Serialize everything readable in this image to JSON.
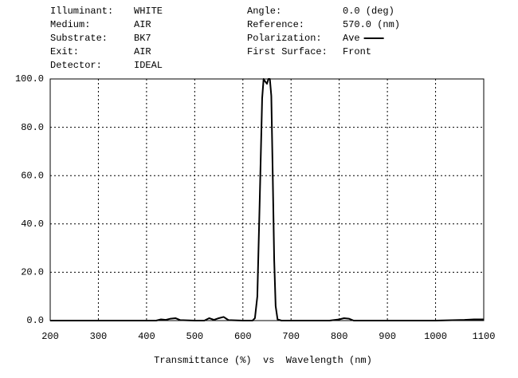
{
  "header": {
    "left": [
      {
        "label": "Illuminant:",
        "value": "WHITE"
      },
      {
        "label": "Medium:",
        "value": "AIR"
      },
      {
        "label": "Substrate:",
        "value": "BK7"
      },
      {
        "label": "Exit:",
        "value": "AIR"
      },
      {
        "label": "Detector:",
        "value": "IDEAL"
      }
    ],
    "right": [
      {
        "label": "Angle:",
        "value": "0.0 (deg)"
      },
      {
        "label": "Reference:",
        "value": "570.0 (nm)"
      },
      {
        "label": "Polarization:",
        "value": "Ave"
      },
      {
        "label": "First Surface:",
        "value": "Front"
      }
    ]
  },
  "chart_data": {
    "type": "line",
    "xlabel": "Transmittance (%)  vs  Wavelength (nm)",
    "x": [
      200,
      300,
      400,
      420,
      430,
      440,
      450,
      460,
      470,
      500,
      520,
      530,
      540,
      550,
      560,
      570,
      600,
      620,
      625,
      630,
      635,
      640,
      643,
      646,
      650,
      653,
      656,
      659,
      662,
      665,
      668,
      672,
      680,
      700,
      780,
      800,
      810,
      820,
      830,
      900,
      1000,
      1060,
      1080,
      1100
    ],
    "values": [
      0,
      0,
      0,
      0,
      0.5,
      0.3,
      0.8,
      1,
      0.2,
      0,
      0,
      1,
      0.3,
      1,
      1.5,
      0.2,
      0,
      0,
      1,
      10,
      50,
      92,
      100,
      99,
      98,
      100,
      100,
      93,
      60,
      25,
      6,
      0.5,
      0,
      0,
      0,
      0.5,
      1,
      0.8,
      0,
      0,
      0,
      0.3,
      0.5,
      0.5
    ],
    "color": "#000000",
    "xlim": [
      200,
      1100
    ],
    "ylim": [
      0,
      100
    ],
    "xticks": [
      200,
      300,
      400,
      500,
      600,
      700,
      800,
      900,
      1000,
      1100
    ],
    "yticks": [
      {
        "value": 0,
        "label": "0.0"
      },
      {
        "value": 20,
        "label": "20.0"
      },
      {
        "value": 40,
        "label": "40.0"
      },
      {
        "value": 60,
        "label": "60.0"
      },
      {
        "value": 80,
        "label": "80.0"
      },
      {
        "value": 100,
        "label": "100.0"
      }
    ],
    "grid": true
  }
}
